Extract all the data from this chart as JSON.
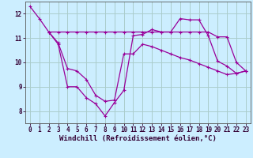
{
  "xlabel": "Windchill (Refroidissement éolien,°C)",
  "background_color": "#cceeff",
  "grid_color": "#aacccc",
  "line_color": "#990099",
  "xlim": [
    -0.5,
    23.5
  ],
  "ylim": [
    7.5,
    12.5
  ],
  "yticks": [
    8,
    9,
    10,
    11,
    12
  ],
  "xticks": [
    0,
    1,
    2,
    3,
    4,
    5,
    6,
    7,
    8,
    9,
    10,
    11,
    12,
    13,
    14,
    15,
    16,
    17,
    18,
    19,
    20,
    21,
    22,
    23
  ],
  "line1_x": [
    0,
    1,
    2,
    3,
    4,
    5,
    6,
    7,
    8,
    9,
    10,
    11,
    12,
    13,
    14,
    15,
    16,
    17,
    18,
    19,
    20,
    21,
    22,
    23
  ],
  "line1_y": [
    12.3,
    11.8,
    11.25,
    10.75,
    9.0,
    9.0,
    8.55,
    8.3,
    7.8,
    8.35,
    8.85,
    11.1,
    11.15,
    11.35,
    11.25,
    11.25,
    11.8,
    11.75,
    11.75,
    11.1,
    10.05,
    9.85,
    9.55,
    9.65
  ],
  "line2_x": [
    2,
    3,
    4,
    5,
    6,
    7,
    8,
    9,
    10,
    11,
    12,
    13,
    14,
    15,
    16,
    17,
    18,
    19,
    20,
    21,
    22,
    23
  ],
  "line2_y": [
    11.25,
    11.25,
    11.25,
    11.25,
    11.25,
    11.25,
    11.25,
    11.25,
    11.25,
    11.25,
    11.25,
    11.25,
    11.25,
    11.25,
    11.25,
    11.25,
    11.25,
    11.25,
    11.05,
    11.05,
    10.0,
    9.65
  ],
  "line3_x": [
    2,
    3,
    4,
    5,
    6,
    7,
    8,
    9,
    10,
    11,
    12,
    13,
    14,
    15,
    16,
    17,
    18,
    19,
    20,
    21,
    22,
    23
  ],
  "line3_y": [
    11.25,
    10.8,
    9.75,
    9.65,
    9.3,
    8.65,
    8.4,
    8.45,
    10.35,
    10.35,
    10.75,
    10.65,
    10.5,
    10.35,
    10.2,
    10.1,
    9.95,
    9.8,
    9.65,
    9.5,
    9.55,
    9.65
  ],
  "fontsize_label": 6.5,
  "fontsize_tick": 5.5
}
